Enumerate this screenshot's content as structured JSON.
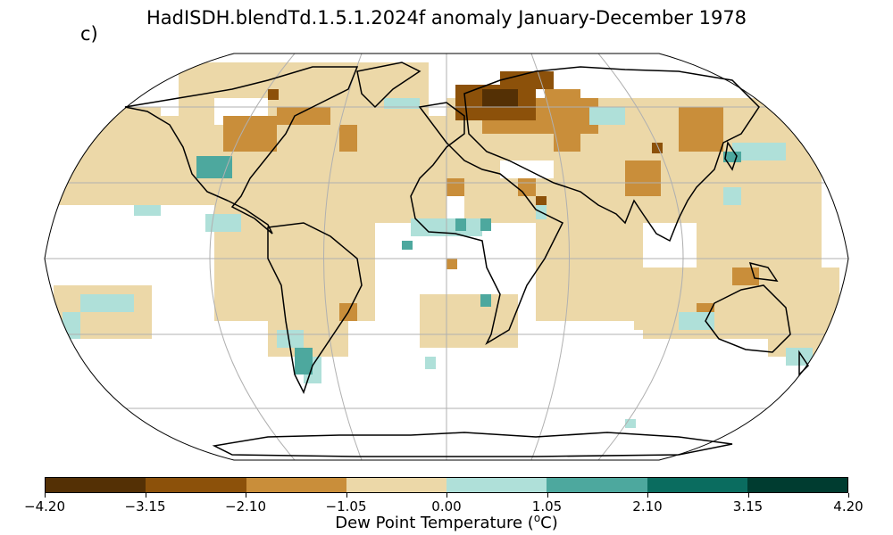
{
  "title": "HadISDH.blendTd.1.5.1.2024f anomaly January-December 1978",
  "panel_label": "c)",
  "colorbar": {
    "label_prefix": "Dew Point Temperature (",
    "label_unit_sup": "o",
    "label_suffix": "C)",
    "ticks": [
      "−4.20",
      "−3.15",
      "−2.10",
      "−1.05",
      "0.00",
      "1.05",
      "2.10",
      "3.15",
      "4.20"
    ],
    "colors": [
      "#543005",
      "#8c510a",
      "#c98e3a",
      "#ecd8a8",
      "#afe0d9",
      "#4da89e",
      "#0a6c5f",
      "#003c30"
    ]
  },
  "map": {
    "projection": "Robinson",
    "gridlines": true,
    "coastlines": true,
    "background": "#ffffff"
  }
}
